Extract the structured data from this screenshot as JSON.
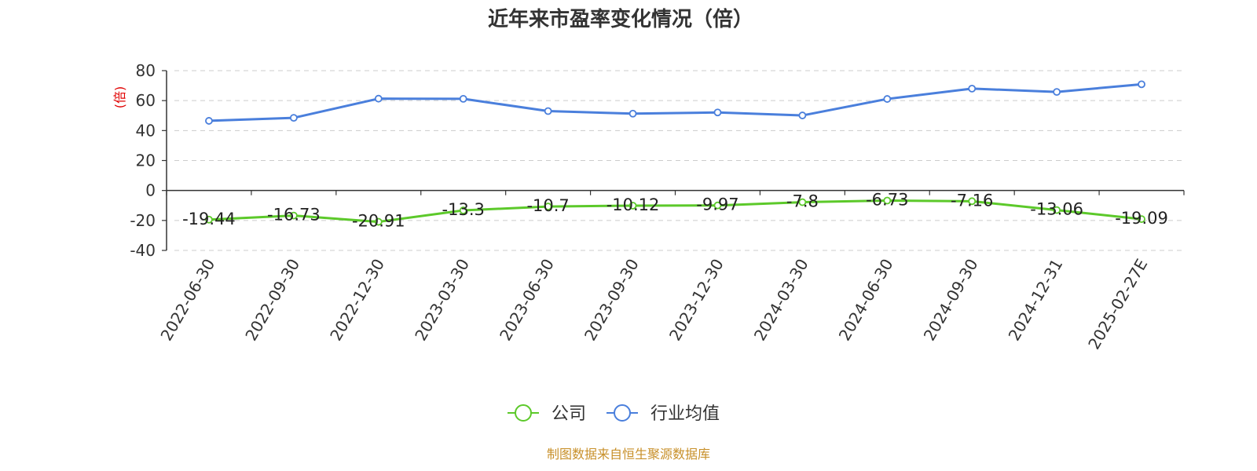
{
  "chart_data": {
    "type": "line",
    "title": "近年来市盈率变化情况（倍）",
    "ylabel": "(倍)",
    "xlabel": "",
    "ylim": [
      -40,
      80
    ],
    "yticks": [
      "80",
      "60",
      "40",
      "20",
      "0",
      "-20",
      "-40"
    ],
    "categories": [
      "2022-06-30",
      "2022-09-30",
      "2022-12-30",
      "2023-03-30",
      "2023-06-30",
      "2023-09-30",
      "2023-12-30",
      "2024-03-30",
      "2024-06-30",
      "2024-09-30",
      "2024-12-31",
      "2025-02-27E"
    ],
    "series": [
      {
        "name": "公司",
        "color": "#5cc92a",
        "values": [
          -19.44,
          -16.73,
          -20.91,
          -13.3,
          -10.7,
          -10.12,
          -9.97,
          -7.8,
          -6.73,
          -7.16,
          -13.06,
          -19.09
        ],
        "labels": [
          "-19.44",
          "-16.73",
          "-20.91",
          "-13.3",
          "-10.7",
          "-10.12",
          "-9.97",
          "-7.8",
          "-6.73",
          "-7.16",
          "-13.06",
          "-19.09"
        ]
      },
      {
        "name": "行业均值",
        "color": "#4a7fdc",
        "values": [
          46.5,
          48.5,
          61.3,
          61.2,
          53.0,
          51.3,
          52.1,
          50.1,
          61.1,
          68.0,
          65.8,
          70.9
        ]
      }
    ],
    "grid": true,
    "legend": "bottom-center"
  },
  "source": "制图数据来自恒生聚源数据库"
}
